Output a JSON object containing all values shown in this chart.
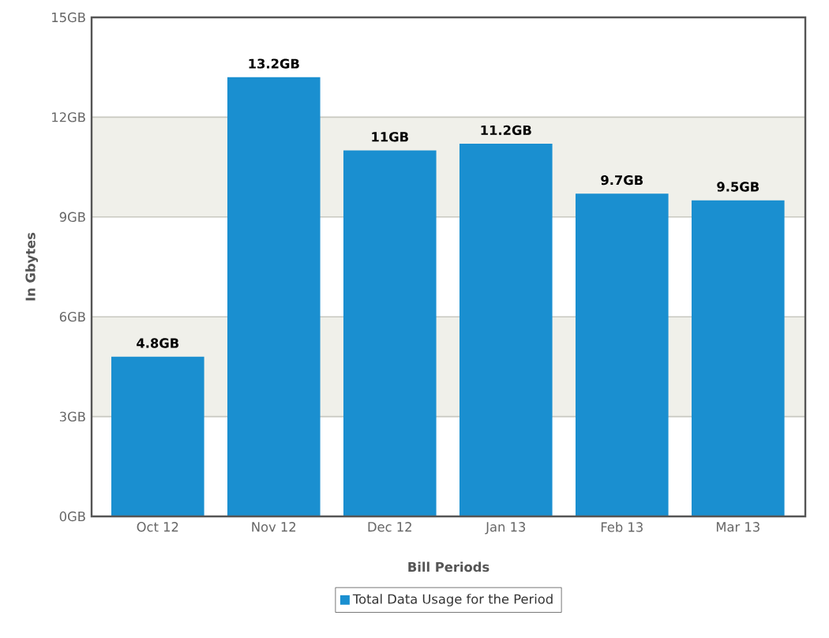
{
  "chart_data": {
    "type": "bar",
    "xlabel": "Bill Periods",
    "ylabel": "In Gbytes",
    "categories": [
      "Oct 12",
      "Nov 12",
      "Dec 12",
      "Jan 13",
      "Feb 13",
      "Mar 13"
    ],
    "series": [
      {
        "name": "Total Data Usage for the Period",
        "color": "#1a8fd0",
        "values": [
          4.8,
          13.2,
          11,
          11.2,
          9.7,
          9.5
        ],
        "value_labels": [
          "4.8GB",
          "13.2GB",
          "11GB",
          "11.2GB",
          "9.7GB",
          "9.5GB"
        ]
      }
    ],
    "ylim": [
      0,
      15
    ],
    "yticks": [
      {
        "value": 0,
        "label": "0GB"
      },
      {
        "value": 3,
        "label": "3GB"
      },
      {
        "value": 6,
        "label": "6GB"
      },
      {
        "value": 9,
        "label": "9GB"
      },
      {
        "value": 12,
        "label": "12GB"
      },
      {
        "value": 15,
        "label": "15GB"
      }
    ],
    "grid": "y",
    "bands": [
      {
        "axis": "y",
        "from": 3,
        "to": 6,
        "color": "#f0f0ea"
      },
      {
        "axis": "y",
        "from": 9,
        "to": 12,
        "color": "#f0f0ea"
      }
    ],
    "legend": "bottom"
  }
}
